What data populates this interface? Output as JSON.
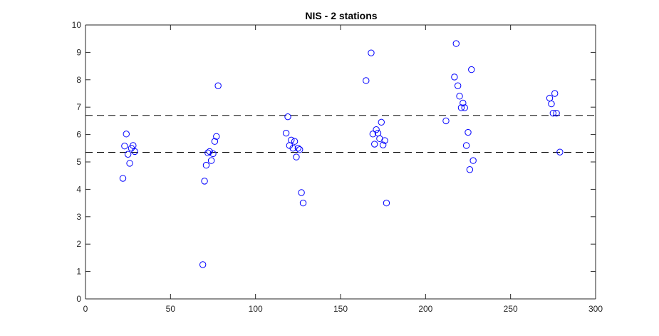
{
  "chart_data": {
    "type": "scatter",
    "title": "NIS - 2 stations",
    "xlabel": "",
    "ylabel": "",
    "xlim": [
      0,
      300
    ],
    "ylim": [
      0,
      10
    ],
    "x_ticks": [
      0,
      50,
      100,
      150,
      200,
      250,
      300
    ],
    "y_ticks": [
      0,
      1,
      2,
      3,
      4,
      5,
      6,
      7,
      8,
      9,
      10
    ],
    "grid": false,
    "marker": "open-circle",
    "marker_color": "#0000ff",
    "reference_lines": [
      {
        "y": 6.7,
        "style": "dashed",
        "color": "#000000"
      },
      {
        "y": 5.35,
        "style": "dashed",
        "color": "#000000"
      }
    ],
    "series": [
      {
        "points": [
          {
            "x": 22,
            "y": 4.4
          },
          {
            "x": 23,
            "y": 5.58
          },
          {
            "x": 24,
            "y": 6.02
          },
          {
            "x": 25,
            "y": 5.28
          },
          {
            "x": 26,
            "y": 4.95
          },
          {
            "x": 27,
            "y": 5.5
          },
          {
            "x": 28,
            "y": 5.6
          },
          {
            "x": 29,
            "y": 5.38
          },
          {
            "x": 69,
            "y": 1.25
          },
          {
            "x": 70,
            "y": 4.3
          },
          {
            "x": 71,
            "y": 4.88
          },
          {
            "x": 72,
            "y": 5.33
          },
          {
            "x": 73,
            "y": 5.38
          },
          {
            "x": 74,
            "y": 5.05
          },
          {
            "x": 75,
            "y": 5.3
          },
          {
            "x": 76,
            "y": 5.75
          },
          {
            "x": 77,
            "y": 5.93
          },
          {
            "x": 78,
            "y": 7.78
          },
          {
            "x": 118,
            "y": 6.05
          },
          {
            "x": 119,
            "y": 6.65
          },
          {
            "x": 120,
            "y": 5.6
          },
          {
            "x": 121,
            "y": 5.8
          },
          {
            "x": 122,
            "y": 5.5
          },
          {
            "x": 123,
            "y": 5.75
          },
          {
            "x": 124,
            "y": 5.18
          },
          {
            "x": 125,
            "y": 5.5
          },
          {
            "x": 126,
            "y": 5.45
          },
          {
            "x": 127,
            "y": 3.88
          },
          {
            "x": 128,
            "y": 3.5
          },
          {
            "x": 165,
            "y": 7.97
          },
          {
            "x": 168,
            "y": 8.98
          },
          {
            "x": 169,
            "y": 6.02
          },
          {
            "x": 170,
            "y": 5.65
          },
          {
            "x": 171,
            "y": 6.18
          },
          {
            "x": 172,
            "y": 6.05
          },
          {
            "x": 173,
            "y": 5.85
          },
          {
            "x": 174,
            "y": 6.45
          },
          {
            "x": 175,
            "y": 5.62
          },
          {
            "x": 176,
            "y": 5.78
          },
          {
            "x": 177,
            "y": 3.5
          },
          {
            "x": 212,
            "y": 6.5
          },
          {
            "x": 217,
            "y": 8.1
          },
          {
            "x": 218,
            "y": 9.32
          },
          {
            "x": 219,
            "y": 7.78
          },
          {
            "x": 220,
            "y": 7.4
          },
          {
            "x": 221,
            "y": 6.98
          },
          {
            "x": 222,
            "y": 7.15
          },
          {
            "x": 223,
            "y": 6.98
          },
          {
            "x": 224,
            "y": 5.6
          },
          {
            "x": 225,
            "y": 6.08
          },
          {
            "x": 226,
            "y": 4.72
          },
          {
            "x": 227,
            "y": 8.37
          },
          {
            "x": 228,
            "y": 5.05
          },
          {
            "x": 273,
            "y": 7.33
          },
          {
            "x": 274,
            "y": 7.12
          },
          {
            "x": 275,
            "y": 6.78
          },
          {
            "x": 276,
            "y": 7.5
          },
          {
            "x": 277,
            "y": 6.78
          },
          {
            "x": 279,
            "y": 5.36
          }
        ]
      }
    ]
  }
}
